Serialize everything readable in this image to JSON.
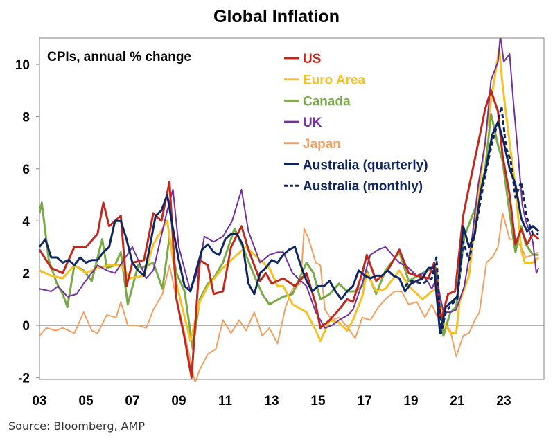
{
  "chart_data": {
    "type": "line",
    "title": "Global Inflation",
    "subtitle": "CPIs, annual % change",
    "source": "Source: Bloomberg, AMP",
    "xlabel": "",
    "ylabel": "",
    "xlim": [
      2003,
      2024.7
    ],
    "ylim": [
      -2,
      11
    ],
    "x_ticks": [
      2003,
      2005,
      2007,
      2009,
      2011,
      2013,
      2015,
      2017,
      2019,
      2021,
      2023
    ],
    "x_tick_labels": [
      "03",
      "05",
      "07",
      "09",
      "11",
      "13",
      "15",
      "17",
      "19",
      "21",
      "23"
    ],
    "y_ticks": [
      -2,
      0,
      2,
      4,
      6,
      8,
      10
    ],
    "y_tick_labels": [
      "-2",
      "0",
      "2",
      "4",
      "6",
      "8",
      "10"
    ],
    "legend_position": "top-center",
    "series": [
      {
        "name": "US",
        "color": "#c0281e",
        "dash": false,
        "width": 3,
        "x": [
          2003,
          2003.5,
          2004,
          2004.5,
          2005,
          2005.5,
          2005.75,
          2006,
          2006.5,
          2006.75,
          2007,
          2007.5,
          2007.9,
          2008.25,
          2008.6,
          2008.9,
          2009.25,
          2009.55,
          2009.9,
          2010.25,
          2010.5,
          2010.9,
          2011.25,
          2011.7,
          2012,
          2012.5,
          2012.75,
          2013,
          2013.5,
          2014,
          2014.5,
          2014.9,
          2015.1,
          2015.5,
          2015.9,
          2016.25,
          2016.5,
          2016.9,
          2017.1,
          2017.5,
          2018,
          2018.5,
          2018.9,
          2019.25,
          2019.75,
          2020.0,
          2020.3,
          2020.6,
          2020.9,
          2021.25,
          2021.5,
          2021.9,
          2022.2,
          2022.45,
          2022.75,
          2022.95,
          2023.25,
          2023.5,
          2023.75,
          2024.0,
          2024.25,
          2024.5
        ],
        "y": [
          2.9,
          2.2,
          2.0,
          3.0,
          3.0,
          3.5,
          4.7,
          3.8,
          4.2,
          1.5,
          2.4,
          2.5,
          4.3,
          4.0,
          5.5,
          1.0,
          -0.5,
          -2.0,
          2.5,
          2.3,
          1.2,
          1.3,
          3.0,
          3.8,
          2.9,
          1.7,
          2.0,
          1.6,
          1.8,
          1.5,
          2.0,
          0.8,
          -0.1,
          0.2,
          0.6,
          1.0,
          0.9,
          2.0,
          2.7,
          1.7,
          2.1,
          2.9,
          2.0,
          1.9,
          1.8,
          2.4,
          0.2,
          1.2,
          1.3,
          4.2,
          5.3,
          7.0,
          8.3,
          9.0,
          8.2,
          6.5,
          5.0,
          3.1,
          3.7,
          3.1,
          3.5,
          3.3
        ]
      },
      {
        "name": "Euro Area",
        "color": "#f5c126",
        "dash": false,
        "width": 3,
        "x": [
          2003,
          2003.5,
          2004,
          2004.5,
          2005,
          2005.5,
          2006,
          2006.5,
          2006.9,
          2007.5,
          2007.9,
          2008.5,
          2008.9,
          2009.5,
          2009.9,
          2010.25,
          2010.9,
          2011.5,
          2011.9,
          2012.5,
          2012.9,
          2013.25,
          2013.5,
          2013.9,
          2014.5,
          2014.9,
          2015.1,
          2015.5,
          2015.9,
          2016.25,
          2016.5,
          2016.9,
          2017.1,
          2017.5,
          2017.9,
          2018.5,
          2018.9,
          2019.5,
          2019.9,
          2020.1,
          2020.4,
          2020.7,
          2020.95,
          2021.1,
          2021.5,
          2021.9,
          2022.25,
          2022.5,
          2022.8,
          2022.95,
          2023.25,
          2023.5,
          2023.75,
          2023.9,
          2024.25,
          2024.5
        ],
        "y": [
          2.1,
          1.9,
          1.8,
          2.3,
          2.0,
          2.2,
          2.3,
          2.3,
          1.8,
          1.9,
          3.1,
          4.0,
          1.6,
          -0.6,
          0.9,
          1.5,
          2.2,
          2.7,
          3.0,
          2.5,
          2.2,
          1.5,
          1.5,
          0.8,
          0.5,
          -0.2,
          -0.6,
          0.2,
          0.1,
          -0.2,
          0.2,
          1.1,
          2.0,
          1.3,
          1.4,
          2.1,
          1.5,
          1.0,
          1.3,
          1.4,
          0.1,
          -0.3,
          -0.3,
          0.9,
          1.9,
          5.0,
          7.4,
          8.9,
          10.6,
          9.2,
          7.0,
          5.3,
          2.9,
          2.4,
          2.4,
          2.6
        ]
      },
      {
        "name": "Canada",
        "color": "#78ab46",
        "dash": false,
        "width": 3,
        "x": [
          2003,
          2003.1,
          2003.4,
          2003.75,
          2004,
          2004.2,
          2004.5,
          2004.9,
          2005.25,
          2005.7,
          2005.9,
          2006.25,
          2006.5,
          2006.8,
          2007.25,
          2007.4,
          2007.9,
          2008.3,
          2008.6,
          2008.9,
          2009.25,
          2009.6,
          2009.9,
          2010.25,
          2010.5,
          2010.9,
          2011.4,
          2011.8,
          2012.25,
          2012.6,
          2012.9,
          2013.5,
          2013.9,
          2014.5,
          2014.8,
          2015.1,
          2015.5,
          2015.9,
          2016.25,
          2016.6,
          2016.9,
          2017.1,
          2017.5,
          2017.9,
          2018.5,
          2018.9,
          2019.5,
          2019.9,
          2020.1,
          2020.4,
          2020.7,
          2020.95,
          2021.3,
          2021.6,
          2021.9,
          2022.2,
          2022.45,
          2022.75,
          2022.95,
          2023.25,
          2023.5,
          2023.75,
          2023.95,
          2024.25,
          2024.5
        ],
        "y": [
          4.3,
          4.7,
          2.5,
          1.6,
          1.2,
          0.7,
          2.3,
          2.1,
          1.7,
          3.3,
          2.2,
          2.3,
          2.8,
          0.8,
          2.3,
          2.2,
          2.4,
          1.4,
          3.4,
          2.0,
          1.3,
          -0.9,
          1.0,
          1.6,
          1.8,
          2.4,
          3.7,
          2.9,
          1.9,
          1.2,
          0.8,
          1.1,
          1.2,
          2.4,
          2.0,
          1.0,
          1.2,
          1.6,
          1.3,
          1.3,
          1.5,
          2.1,
          1.2,
          2.1,
          2.8,
          1.7,
          2.0,
          2.2,
          2.2,
          -0.4,
          0.5,
          0.7,
          3.4,
          4.1,
          4.8,
          6.0,
          8.1,
          6.9,
          6.3,
          4.3,
          2.8,
          3.8,
          3.1,
          2.7,
          2.7
        ]
      },
      {
        "name": "UK",
        "color": "#7030a0",
        "dash": false,
        "width": 2,
        "x": [
          2003,
          2003.5,
          2003.8,
          2004.2,
          2004.6,
          2004.9,
          2005.5,
          2005.9,
          2006.25,
          2006.7,
          2007.0,
          2007.3,
          2007.6,
          2007.9,
          2008.5,
          2008.75,
          2009.0,
          2009.5,
          2009.9,
          2010.1,
          2010.5,
          2010.9,
          2011.3,
          2011.7,
          2012.0,
          2012.5,
          2012.9,
          2013.25,
          2013.5,
          2013.9,
          2014.5,
          2014.9,
          2015.3,
          2015.6,
          2015.9,
          2016.3,
          2016.5,
          2016.9,
          2017.25,
          2017.6,
          2017.9,
          2018.5,
          2018.9,
          2019.25,
          2019.5,
          2019.9,
          2020.1,
          2020.4,
          2020.7,
          2020.95,
          2021.3,
          2021.6,
          2021.9,
          2022.2,
          2022.45,
          2022.75,
          2022.85,
          2023.0,
          2023.25,
          2023.4,
          2023.6,
          2023.8,
          2023.95,
          2024.25,
          2024.4,
          2024.5
        ],
        "y": [
          1.4,
          1.3,
          1.5,
          1.1,
          1.2,
          1.6,
          2.3,
          2.1,
          2.0,
          2.6,
          3.0,
          2.4,
          1.8,
          2.1,
          4.4,
          5.2,
          3.0,
          1.3,
          2.3,
          3.4,
          3.2,
          3.4,
          4.0,
          5.2,
          3.6,
          2.4,
          2.7,
          2.8,
          2.8,
          2.0,
          1.5,
          0.5,
          -0.1,
          0.0,
          0.2,
          0.4,
          0.6,
          1.6,
          2.7,
          2.9,
          3.0,
          2.4,
          2.2,
          1.9,
          2.0,
          1.4,
          1.8,
          0.5,
          0.5,
          0.6,
          1.5,
          3.1,
          5.4,
          7.0,
          9.4,
          10.1,
          11.1,
          10.1,
          10.4,
          8.7,
          6.7,
          4.6,
          4.0,
          3.2,
          2.0,
          2.2
        ]
      },
      {
        "name": "Japan",
        "color": "#f0a060",
        "dash": false,
        "width": 2,
        "x": [
          2003,
          2003.3,
          2003.7,
          2004,
          2004.5,
          2004.9,
          2005.25,
          2005.5,
          2005.9,
          2006.3,
          2006.5,
          2006.8,
          2007.25,
          2007.6,
          2007.9,
          2008.3,
          2008.6,
          2008.9,
          2009.25,
          2009.7,
          2009.9,
          2010.25,
          2010.6,
          2010.9,
          2011.25,
          2011.6,
          2011.9,
          2012.25,
          2012.6,
          2012.9,
          2013.25,
          2013.6,
          2013.9,
          2014.25,
          2014.4,
          2014.6,
          2014.9,
          2015.1,
          2015.3,
          2015.6,
          2015.9,
          2016.3,
          2016.6,
          2016.9,
          2017.25,
          2017.6,
          2017.9,
          2018.3,
          2018.6,
          2018.9,
          2019.25,
          2019.6,
          2019.9,
          2020.1,
          2020.4,
          2020.7,
          2020.95,
          2021.25,
          2021.5,
          2021.75,
          2021.95,
          2022.25,
          2022.5,
          2022.75,
          2022.95,
          2023.25,
          2023.5,
          2023.75,
          2023.95,
          2024.25,
          2024.5
        ],
        "y": [
          -0.4,
          -0.1,
          -0.2,
          -0.1,
          -0.3,
          0.5,
          -0.2,
          -0.3,
          0.4,
          0.3,
          0.9,
          0.0,
          0.0,
          -0.1,
          0.6,
          1.2,
          2.3,
          1.0,
          -0.3,
          -2.2,
          -1.7,
          -1.1,
          -0.9,
          0.2,
          -0.3,
          0.2,
          -0.2,
          0.5,
          -0.4,
          -0.1,
          -0.7,
          0.7,
          1.4,
          1.6,
          3.7,
          3.3,
          2.4,
          2.3,
          0.6,
          0.2,
          0.3,
          -0.1,
          -0.5,
          0.3,
          0.2,
          0.7,
          1.0,
          1.3,
          1.3,
          0.8,
          0.9,
          0.3,
          0.8,
          0.4,
          0.1,
          -0.2,
          -1.2,
          -0.4,
          -0.3,
          0.2,
          0.5,
          2.4,
          2.6,
          3.0,
          4.3,
          3.3,
          3.3,
          3.0,
          2.6,
          2.7,
          2.8
        ]
      },
      {
        "name": "Australia (quarterly)",
        "color": "#0f2660",
        "dash": false,
        "width": 3,
        "x": [
          2003,
          2003.25,
          2003.5,
          2003.75,
          2004,
          2004.25,
          2004.5,
          2004.75,
          2005,
          2005.25,
          2005.5,
          2005.75,
          2006,
          2006.25,
          2006.5,
          2006.75,
          2007,
          2007.25,
          2007.5,
          2007.75,
          2008,
          2008.25,
          2008.5,
          2008.75,
          2009,
          2009.25,
          2009.5,
          2009.75,
          2010,
          2010.25,
          2010.5,
          2010.75,
          2011,
          2011.25,
          2011.5,
          2011.75,
          2012,
          2012.25,
          2012.5,
          2012.75,
          2013,
          2013.25,
          2013.5,
          2013.75,
          2014,
          2014.25,
          2014.5,
          2014.75,
          2015,
          2015.25,
          2015.5,
          2015.75,
          2016,
          2016.25,
          2016.5,
          2016.75,
          2017,
          2017.25,
          2017.5,
          2017.75,
          2018,
          2018.25,
          2018.5,
          2018.75,
          2019,
          2019.25,
          2019.5,
          2019.75,
          2020,
          2020.25,
          2020.5,
          2020.75,
          2021,
          2021.25,
          2021.5,
          2021.75,
          2022,
          2022.25,
          2022.5,
          2022.75,
          2023,
          2023.25,
          2023.5,
          2023.75,
          2024,
          2024.25,
          2024.5
        ],
        "y": [
          3.0,
          3.3,
          2.6,
          2.6,
          2.4,
          2.5,
          2.3,
          2.6,
          2.4,
          2.5,
          2.5,
          2.8,
          3.0,
          4.0,
          4.0,
          3.3,
          2.4,
          2.1,
          1.9,
          3.0,
          4.2,
          4.4,
          5.0,
          3.7,
          2.5,
          1.5,
          1.3,
          2.1,
          2.9,
          3.1,
          2.8,
          2.7,
          3.3,
          3.5,
          3.5,
          3.1,
          1.6,
          1.2,
          2.0,
          2.2,
          2.5,
          2.4,
          2.7,
          2.9,
          3.0,
          2.3,
          1.7,
          1.3,
          1.5,
          1.5,
          1.7,
          1.3,
          1.0,
          1.3,
          1.5,
          2.1,
          1.9,
          1.8,
          1.9,
          1.9,
          2.1,
          1.9,
          1.8,
          1.3,
          1.6,
          1.7,
          1.8,
          2.2,
          2.2,
          -0.3,
          0.7,
          0.9,
          1.1,
          3.8,
          3.0,
          3.5,
          5.1,
          6.1,
          7.3,
          7.8,
          7.0,
          6.0,
          5.4,
          4.1,
          3.6,
          3.8,
          3.6
        ]
      },
      {
        "name": "Australia (monthly)",
        "color": "#0f2660",
        "dash": true,
        "width": 3,
        "x": [
          2018.75,
          2019,
          2019.5,
          2019.9,
          2020.1,
          2020.3,
          2020.5,
          2020.75,
          2021.0,
          2021.25,
          2021.5,
          2021.75,
          2022,
          2022.25,
          2022.5,
          2022.75,
          2022.9,
          2023.1,
          2023.3,
          2023.5,
          2023.75,
          2024,
          2024.25,
          2024.5
        ],
        "y": [
          1.5,
          1.7,
          1.6,
          1.8,
          2.6,
          -0.3,
          0.5,
          0.8,
          1.0,
          3.2,
          2.5,
          3.5,
          4.8,
          6.0,
          7.0,
          7.8,
          8.4,
          6.8,
          6.3,
          4.9,
          5.5,
          4.1,
          3.5,
          3.5
        ]
      }
    ]
  }
}
